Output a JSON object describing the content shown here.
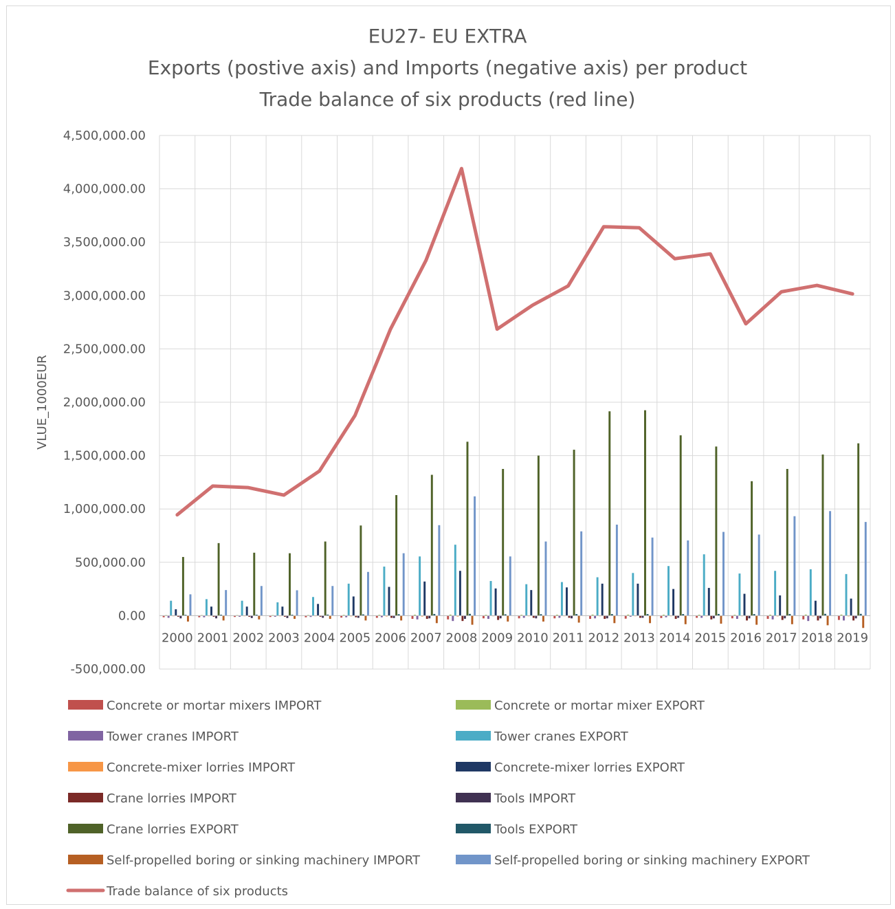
{
  "chart_data": {
    "type": "bar",
    "title_lines": [
      "EU27- EU EXTRA",
      "Exports (postive axis) and Imports (negative axis) per product",
      "Trade balance of six products (red line)"
    ],
    "xlabel": "",
    "ylabel": "VLUE_1000EUR",
    "ylim": [
      -500000,
      4500000
    ],
    "ytick_values": [
      -500000,
      0,
      500000,
      1000000,
      1500000,
      2000000,
      2500000,
      3000000,
      3500000,
      4000000,
      4500000
    ],
    "ytick_labels": [
      "-500,000.00",
      "0.00",
      "500,000.00",
      "1,000,000.00",
      "1,500,000.00",
      "2,000,000.00",
      "2,500,000.00",
      "3,000,000.00",
      "3,500,000.00",
      "4,000,000.00",
      "4,500,000.00"
    ],
    "grid": true,
    "legend_position": "bottom",
    "categories": [
      "2000",
      "2001",
      "2002",
      "2003",
      "2004",
      "2005",
      "2006",
      "2007",
      "2008",
      "2009",
      "2010",
      "2011",
      "2012",
      "2013",
      "2014",
      "2015",
      "2016",
      "2017",
      "2018",
      "2019"
    ],
    "series": [
      {
        "name": "Concrete or mortar mixers IMPORT",
        "color": "#c0504d",
        "type": "bar",
        "values": [
          -15000,
          -15000,
          -12000,
          -12000,
          -15000,
          -18000,
          -20000,
          -30000,
          -35000,
          -25000,
          -25000,
          -25000,
          -30000,
          -28000,
          -22000,
          -20000,
          -25000,
          -30000,
          -35000,
          -40000
        ]
      },
      {
        "name": "Concrete or mortar mixer EXPORT",
        "color": "#9bbb59",
        "type": "bar",
        "values": [
          5000,
          5000,
          5000,
          5000,
          6000,
          7000,
          8000,
          9000,
          10000,
          8000,
          8000,
          9000,
          10000,
          10000,
          9000,
          9000,
          8000,
          9000,
          10000,
          10000
        ]
      },
      {
        "name": "Tower cranes IMPORT",
        "color": "#8064a2",
        "type": "bar",
        "values": [
          -20000,
          -15000,
          -10000,
          -10000,
          -12000,
          -15000,
          -15000,
          -35000,
          -50000,
          -30000,
          -20000,
          -20000,
          -25000,
          -10000,
          -15000,
          -20000,
          -30000,
          -35000,
          -50000,
          -45000
        ]
      },
      {
        "name": "Tower cranes EXPORT",
        "color": "#4bacc6",
        "type": "bar",
        "values": [
          140000,
          155000,
          140000,
          125000,
          175000,
          300000,
          460000,
          555000,
          665000,
          325000,
          295000,
          315000,
          360000,
          400000,
          465000,
          575000,
          395000,
          420000,
          435000,
          390000
        ]
      },
      {
        "name": "Concrete-mixer lorries IMPORT",
        "color": "#f79646",
        "type": "bar",
        "values": [
          -5000,
          -5000,
          -5000,
          -5000,
          -5000,
          -6000,
          -7000,
          -8000,
          -8000,
          -5000,
          -5000,
          -5000,
          -5000,
          -5000,
          -5000,
          -5000,
          -5000,
          -6000,
          -6000,
          -6000
        ]
      },
      {
        "name": "Concrete-mixer lorries EXPORT",
        "color": "#1f3864",
        "type": "bar",
        "values": [
          60000,
          85000,
          85000,
          85000,
          110000,
          180000,
          270000,
          320000,
          420000,
          255000,
          240000,
          265000,
          300000,
          300000,
          250000,
          260000,
          205000,
          190000,
          140000,
          160000
        ]
      },
      {
        "name": "Crane lorries IMPORT",
        "color": "#7b2a27",
        "type": "bar",
        "values": [
          -10000,
          -10000,
          -10000,
          -10000,
          -10000,
          -15000,
          -20000,
          -30000,
          -50000,
          -40000,
          -20000,
          -20000,
          -30000,
          -20000,
          -30000,
          -35000,
          -45000,
          -40000,
          -45000,
          -45000
        ]
      },
      {
        "name": "Tools IMPORT",
        "color": "#403152",
        "type": "bar",
        "values": [
          -25000,
          -25000,
          -22000,
          -22000,
          -20000,
          -20000,
          -22000,
          -25000,
          -30000,
          -25000,
          -25000,
          -25000,
          -25000,
          -20000,
          -20000,
          -25000,
          -25000,
          -25000,
          -25000,
          -25000
        ]
      },
      {
        "name": "Crane lorries EXPORT",
        "color": "#4f6228",
        "type": "bar",
        "values": [
          550000,
          680000,
          590000,
          585000,
          695000,
          845000,
          1130000,
          1320000,
          1630000,
          1375000,
          1500000,
          1555000,
          1915000,
          1925000,
          1690000,
          1585000,
          1260000,
          1375000,
          1510000,
          1615000
        ]
      },
      {
        "name": "Tools EXPORT",
        "color": "#215868",
        "type": "bar",
        "values": [
          8000,
          9000,
          9000,
          9000,
          10000,
          12000,
          14000,
          16000,
          17000,
          13000,
          14000,
          15000,
          15000,
          15000,
          15000,
          16000,
          15000,
          16000,
          17000,
          17000
        ]
      },
      {
        "name": "Self-propelled boring or sinking machinery IMPORT",
        "color": "#b65f23",
        "type": "bar",
        "values": [
          -55000,
          -45000,
          -35000,
          -30000,
          -30000,
          -45000,
          -45000,
          -70000,
          -85000,
          -55000,
          -55000,
          -65000,
          -70000,
          -70000,
          -80000,
          -75000,
          -85000,
          -80000,
          -90000,
          -115000
        ]
      },
      {
        "name": "Self-propelled boring or sinking machinery EXPORT",
        "color": "#7195c9",
        "type": "bar",
        "values": [
          200000,
          240000,
          278000,
          238000,
          278000,
          410000,
          585000,
          848000,
          1118000,
          555000,
          695000,
          790000,
          853000,
          732000,
          705000,
          785000,
          760000,
          932000,
          980000,
          878000
        ]
      },
      {
        "name": "Trade balance of six products",
        "color": "#d07070",
        "type": "line",
        "values": [
          945000,
          1215000,
          1200000,
          1130000,
          1355000,
          1875000,
          2685000,
          3330000,
          4190000,
          2685000,
          2910000,
          3090000,
          3645000,
          3635000,
          3345000,
          3390000,
          2735000,
          3035000,
          3095000,
          3015000
        ]
      }
    ]
  }
}
